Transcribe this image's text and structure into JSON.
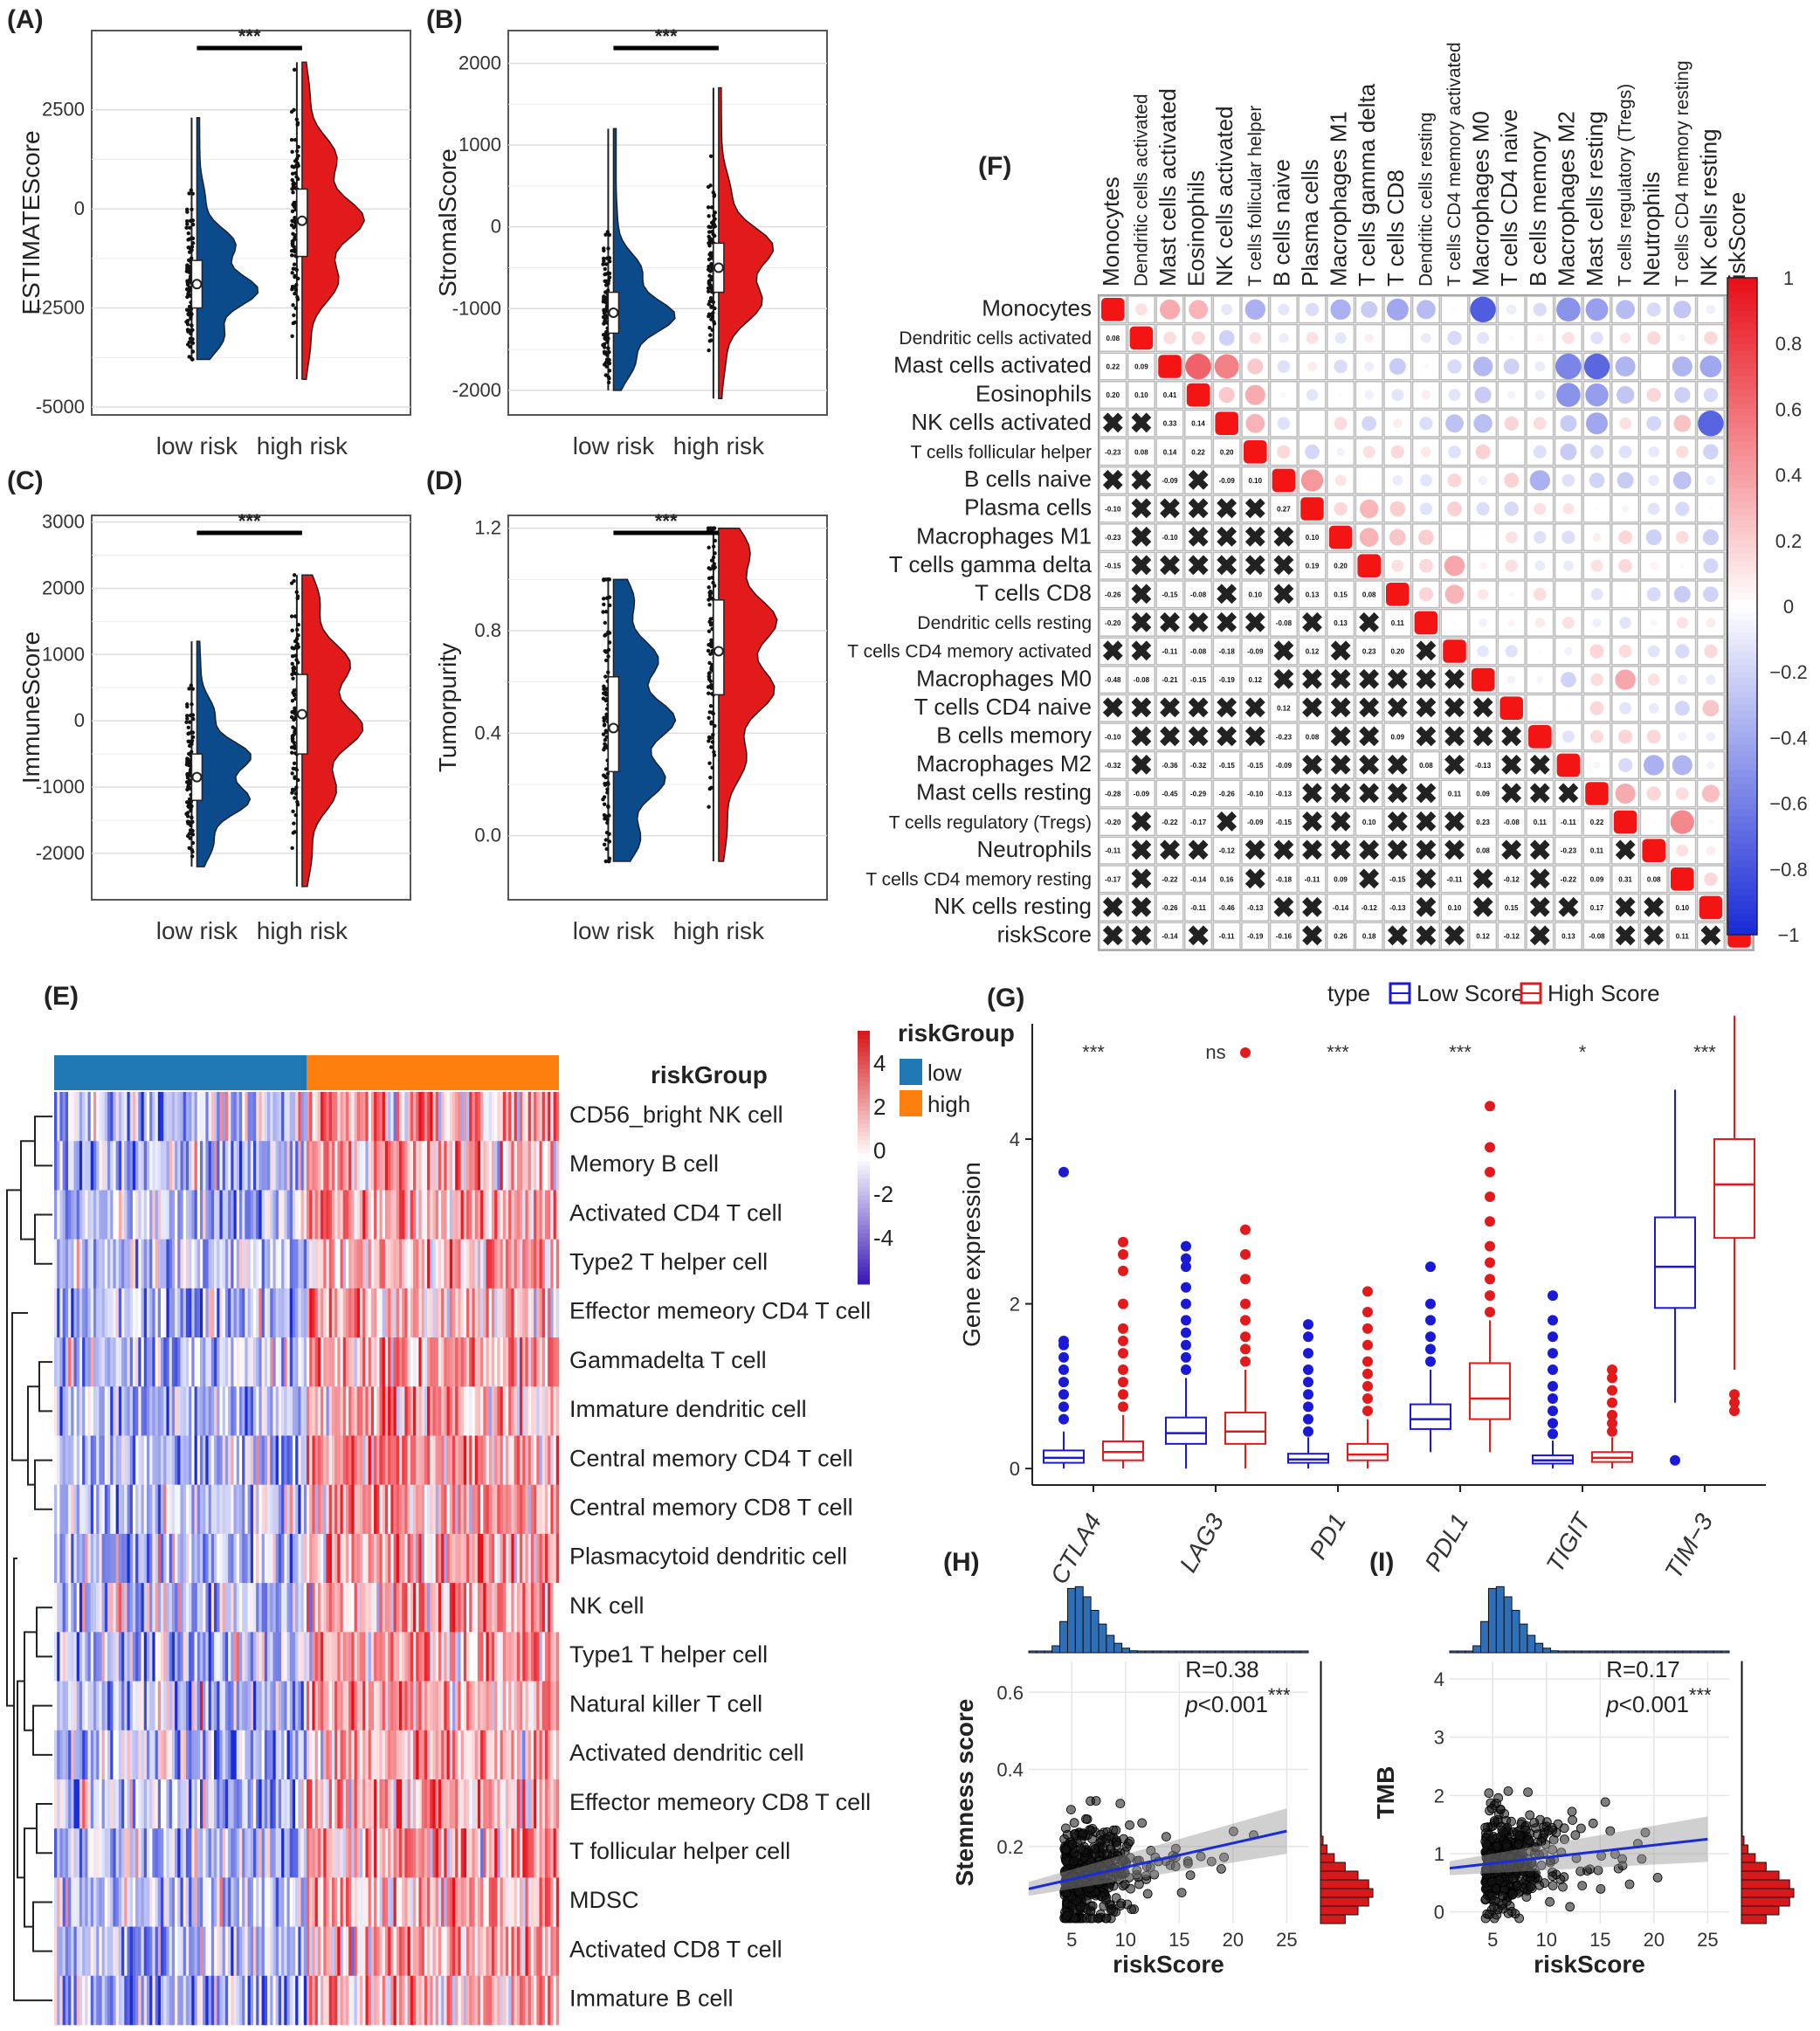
{
  "panels": {
    "A": {
      "letter": "(A)",
      "chart_data": {
        "type": "violin",
        "ylabel": "ESTIMATEScore",
        "categories": [
          "low risk",
          "high risk"
        ],
        "yticks": [
          2500,
          0,
          -2500,
          -5000
        ],
        "ylim": [
          -5200,
          4500
        ],
        "significance": "***",
        "groups": [
          {
            "name": "low risk",
            "median": -1900,
            "q1": -2500,
            "q3": -1300,
            "min": -3800,
            "max": 2300,
            "color": "#0b4a8b"
          },
          {
            "name": "high risk",
            "median": -300,
            "q1": -1200,
            "q3": 500,
            "min": -4300,
            "max": 3700,
            "color": "#e31a1c"
          }
        ]
      }
    },
    "B": {
      "letter": "(B)",
      "chart_data": {
        "type": "violin",
        "ylabel": "StromalScore",
        "categories": [
          "low risk",
          "high risk"
        ],
        "yticks": [
          2000,
          1000,
          0,
          -1000,
          -2000
        ],
        "ylim": [
          -2300,
          2400
        ],
        "significance": "***",
        "groups": [
          {
            "name": "low risk",
            "median": -1050,
            "q1": -1300,
            "q3": -800,
            "min": -2000,
            "max": 1200,
            "color": "#0b4a8b"
          },
          {
            "name": "high risk",
            "median": -500,
            "q1": -800,
            "q3": -200,
            "min": -2100,
            "max": 1700,
            "color": "#e31a1c"
          }
        ]
      }
    },
    "C": {
      "letter": "(C)",
      "chart_data": {
        "type": "violin",
        "ylabel": "ImmuneScore",
        "categories": [
          "low risk",
          "high risk"
        ],
        "yticks": [
          3000,
          2000,
          1000,
          0,
          -1000,
          -2000
        ],
        "ylim": [
          -2700,
          3100
        ],
        "significance": "***",
        "groups": [
          {
            "name": "low risk",
            "median": -850,
            "q1": -1200,
            "q3": -500,
            "min": -2200,
            "max": 1200,
            "color": "#0b4a8b"
          },
          {
            "name": "high risk",
            "median": 100,
            "q1": -500,
            "q3": 700,
            "min": -2500,
            "max": 2200,
            "color": "#e31a1c"
          }
        ]
      }
    },
    "D": {
      "letter": "(D)",
      "chart_data": {
        "type": "violin",
        "ylabel": "Tumorpurity",
        "categories": [
          "low risk",
          "high risk"
        ],
        "yticks": [
          "1.2",
          "0.8",
          "0.4",
          "0.0"
        ],
        "ylim": [
          -0.25,
          1.25
        ],
        "significance": "***",
        "groups": [
          {
            "name": "low risk",
            "median": 0.42,
            "q1": 0.25,
            "q3": 0.62,
            "min": -0.1,
            "max": 1.0,
            "color": "#0b4a8b"
          },
          {
            "name": "high risk",
            "median": 0.72,
            "q1": 0.55,
            "q3": 0.92,
            "min": -0.1,
            "max": 1.2,
            "color": "#e31a1c"
          }
        ]
      }
    },
    "E": {
      "letter": "(E)",
      "legend_title": "riskGroup",
      "legend_items": [
        {
          "label": "low",
          "color": "#1f77b4"
        },
        {
          "label": "high",
          "color": "#ff7f0e"
        }
      ],
      "scale_ticks": [
        "4",
        "2",
        "0",
        "-2",
        "-4"
      ],
      "chart_data": {
        "type": "heatmap",
        "rows": [
          "CD56_bright NK cell",
          "Memory B cell",
          "Activated CD4  T cell",
          "Type2 T helper cell",
          "Effector memeory CD4 T cell",
          "Gammadelta T cell",
          "Immature dendritic cell",
          "Central memory CD4 T cell",
          "Central memory CD8 T cell",
          "Plasmacytoid dendritic cell",
          "NK cell",
          "Type1 T helper cell",
          "Natural killer T cell",
          "Activated dendritic cell",
          "Effector memeory CD8 T cell",
          "T follicular helper cell",
          "MDSC",
          "Activated CD8 T cell",
          "Immature B cell"
        ],
        "groups": [
          "low",
          "high"
        ],
        "low_fraction": 0.5,
        "color_range": [
          -4,
          4
        ]
      }
    },
    "F": {
      "letter": "(F)",
      "colorbar_ticks": [
        "1",
        "0.8",
        "0.6",
        "0.4",
        "0.2",
        "0",
        "−0.2",
        "−0.4",
        "−0.6",
        "−0.8",
        "−1"
      ],
      "chart_data": {
        "type": "correlation-matrix",
        "labels": [
          "Monocytes",
          "Dendritic cells activated",
          "Mast cells activated",
          "Eosinophils",
          "NK cells activated",
          "T cells follicular helper",
          "B cells naive",
          "Plasma cells",
          "Macrophages M1",
          "T cells gamma delta",
          "T cells CD8",
          "Dendritic cells resting",
          "T cells CD4 memory activated",
          "Macrophages M0",
          "T cells CD4 naive",
          "B cells memory",
          "Macrophages M2",
          "Mast cells resting",
          "T cells regulatory (Tregs)",
          "Neutrophils",
          "T cells CD4 memory resting",
          "NK cells resting",
          "riskScore"
        ],
        "label_colors": [
          "#111111",
          "#111111",
          "#1a1ad6",
          "#111111",
          "#1a1ad6",
          "#1a1ad6",
          "#1a1ad6",
          "#111111",
          "#e31a1c",
          "#e31a1c",
          "#111111",
          "#111111",
          "#111111",
          "#e31a1c",
          "#1a1ad6",
          "#111111",
          "#e31a1c",
          "#1a1ad6",
          "#111111",
          "#111111",
          "#e31a1c",
          "#111111",
          "#e010c8"
        ],
        "lower": [
          [],
          [
            "0.08"
          ],
          [
            "0.22",
            "0.09"
          ],
          [
            "0.20",
            "0.10",
            "0.41"
          ],
          [
            "X",
            "X",
            "0.33",
            "0.14"
          ],
          [
            "-0.23",
            "0.08",
            "0.14",
            "0.22",
            "0.20"
          ],
          [
            "X",
            "X",
            "-0.09",
            "X",
            "-0.09",
            "0.10"
          ],
          [
            "-0.10",
            "X",
            "X",
            "X",
            "X",
            "X",
            "0.27"
          ],
          [
            "-0.23",
            "X",
            "-0.10",
            "X",
            "X",
            "X",
            "X",
            "0.10"
          ],
          [
            "-0.15",
            "X",
            "X",
            "X",
            "X",
            "X",
            "X",
            "0.19",
            "0.20"
          ],
          [
            "-0.26",
            "X",
            "-0.15",
            "-0.08",
            "X",
            "0.10",
            "X",
            "0.13",
            "0.15",
            "0.08"
          ],
          [
            "-0.20",
            "X",
            "X",
            "X",
            "X",
            "X",
            "-0.08",
            "X",
            "0.13",
            "X",
            "0.11"
          ],
          [
            "X",
            "X",
            "-0.11",
            "-0.08",
            "-0.18",
            "-0.09",
            "X",
            "0.12",
            "X",
            "0.23",
            "0.20",
            "X"
          ],
          [
            "-0.48",
            "-0.08",
            "-0.21",
            "-0.15",
            "-0.19",
            "0.12",
            "X",
            "X",
            "X",
            "X",
            "X",
            "X",
            "X"
          ],
          [
            "X",
            "X",
            "X",
            "X",
            "X",
            "X",
            "0.12",
            "X",
            "X",
            "X",
            "X",
            "X",
            "X",
            "X"
          ],
          [
            "-0.10",
            "X",
            "X",
            "X",
            "X",
            "X",
            "-0.23",
            "0.08",
            "X",
            "X",
            "0.09",
            "X",
            "X",
            "X",
            "X"
          ],
          [
            "-0.32",
            "X",
            "-0.36",
            "-0.32",
            "-0.15",
            "-0.15",
            "-0.09",
            "X",
            "X",
            "X",
            "X",
            "0.08",
            "X",
            "-0.13",
            "X",
            "X"
          ],
          [
            "-0.28",
            "-0.09",
            "-0.45",
            "-0.29",
            "-0.26",
            "-0.10",
            "-0.13",
            "X",
            "X",
            "X",
            "X",
            "X",
            "0.11",
            "0.09",
            "X",
            "X",
            "X"
          ],
          [
            "-0.20",
            "X",
            "-0.22",
            "-0.17",
            "X",
            "-0.09",
            "-0.15",
            "X",
            "X",
            "0.10",
            "X",
            "X",
            "X",
            "0.23",
            "-0.08",
            "0.11",
            "-0.11",
            "0.22"
          ],
          [
            "-0.11",
            "X",
            "X",
            "X",
            "-0.12",
            "X",
            "X",
            "X",
            "X",
            "X",
            "X",
            "X",
            "X",
            "0.08",
            "X",
            "X",
            "-0.23",
            "0.11",
            "X"
          ],
          [
            "-0.17",
            "X",
            "-0.22",
            "-0.14",
            "0.16",
            "X",
            "-0.18",
            "-0.11",
            "0.09",
            "X",
            "-0.15",
            "X",
            "-0.11",
            "X",
            "-0.12",
            "X",
            "-0.22",
            "0.09",
            "0.31",
            "0.08"
          ],
          [
            "X",
            "X",
            "-0.26",
            "-0.11",
            "-0.46",
            "-0.13",
            "X",
            "X",
            "-0.14",
            "-0.12",
            "-0.13",
            "X",
            "0.10",
            "X",
            "0.15",
            "X",
            "X",
            "0.17",
            "X",
            "X",
            "0.10"
          ],
          [
            "X",
            "X",
            "-0.14",
            "X",
            "-0.11",
            "-0.19",
            "-0.16",
            "X",
            "0.26",
            "0.18",
            "X",
            "X",
            "X",
            "0.12",
            "-0.12",
            "X",
            "0.13",
            "-0.08",
            "X",
            "X",
            "0.11",
            "X"
          ]
        ],
        "color_range": [
          -1,
          1
        ]
      }
    },
    "G": {
      "letter": "(G)",
      "legend_title": "type",
      "legend_items": [
        {
          "label": "Low Score",
          "color": "#1a1ad6"
        },
        {
          "label": "High Score",
          "color": "#e31a1c"
        }
      ],
      "chart_data": {
        "type": "box",
        "ylabel": "Gene expression",
        "yticks": [
          0,
          2,
          4
        ],
        "ylim": [
          -0.2,
          5.4
        ],
        "categories": [
          "CTLA4",
          "LAG3",
          "PD1",
          "PDL1",
          "TIGIT",
          "TIM−3"
        ],
        "significance": [
          "***",
          "ns",
          "***",
          "***",
          "*",
          "***"
        ],
        "series": [
          {
            "name": "Low Score",
            "color": "#1a1ad6",
            "boxes": [
              {
                "q1": 0.07,
                "median": 0.13,
                "q3": 0.22,
                "wlo": 0.0,
                "whi": 0.45,
                "outliers": [
                  0.6,
                  0.75,
                  0.9,
                  1.05,
                  1.2,
                  1.35,
                  1.5,
                  1.55,
                  3.6
                ]
              },
              {
                "q1": 0.3,
                "median": 0.43,
                "q3": 0.62,
                "wlo": 0.0,
                "whi": 1.1,
                "outliers": [
                  1.2,
                  1.35,
                  1.5,
                  1.65,
                  1.8,
                  2.0,
                  2.2,
                  2.45,
                  2.55,
                  2.7
                ]
              },
              {
                "q1": 0.07,
                "median": 0.11,
                "q3": 0.18,
                "wlo": 0.0,
                "whi": 0.38,
                "outliers": [
                  0.45,
                  0.6,
                  0.75,
                  0.9,
                  1.05,
                  1.2,
                  1.4,
                  1.6,
                  1.75
                ]
              },
              {
                "q1": 0.48,
                "median": 0.6,
                "q3": 0.78,
                "wlo": 0.2,
                "whi": 1.2,
                "outliers": [
                  1.3,
                  1.45,
                  1.6,
                  1.8,
                  2.0,
                  2.45
                ]
              },
              {
                "q1": 0.06,
                "median": 0.1,
                "q3": 0.16,
                "wlo": 0.0,
                "whi": 0.34,
                "outliers": [
                  0.42,
                  0.55,
                  0.7,
                  0.85,
                  1.0,
                  1.2,
                  1.4,
                  1.6,
                  1.8,
                  2.1
                ]
              },
              {
                "q1": 1.95,
                "median": 2.45,
                "q3": 3.05,
                "wlo": 0.8,
                "whi": 4.6,
                "outliers": [
                  0.1
                ]
              }
            ]
          },
          {
            "name": "High Score",
            "color": "#e31a1c",
            "boxes": [
              {
                "q1": 0.1,
                "median": 0.2,
                "q3": 0.33,
                "wlo": 0.0,
                "whi": 0.65,
                "outliers": [
                  0.75,
                  0.9,
                  1.05,
                  1.2,
                  1.4,
                  1.55,
                  1.7,
                  2.0,
                  2.4,
                  2.6,
                  2.75
                ]
              },
              {
                "q1": 0.3,
                "median": 0.45,
                "q3": 0.68,
                "wlo": 0.0,
                "whi": 1.2,
                "outliers": [
                  1.3,
                  1.45,
                  1.6,
                  1.8,
                  2.0,
                  2.3,
                  2.6,
                  2.9,
                  5.05
                ]
              },
              {
                "q1": 0.1,
                "median": 0.17,
                "q3": 0.3,
                "wlo": 0.0,
                "whi": 0.6,
                "outliers": [
                  0.7,
                  0.85,
                  1.0,
                  1.15,
                  1.3,
                  1.5,
                  1.7,
                  1.9,
                  2.15
                ]
              },
              {
                "q1": 0.6,
                "median": 0.85,
                "q3": 1.28,
                "wlo": 0.2,
                "whi": 1.8,
                "outliers": [
                  1.9,
                  2.1,
                  2.3,
                  2.5,
                  2.7,
                  3.0,
                  3.3,
                  3.6,
                  3.9,
                  4.4
                ]
              },
              {
                "q1": 0.08,
                "median": 0.13,
                "q3": 0.2,
                "wlo": 0.0,
                "whi": 0.38,
                "outliers": [
                  0.45,
                  0.55,
                  0.65,
                  0.8,
                  0.95,
                  1.1,
                  1.2
                ]
              },
              {
                "q1": 2.8,
                "median": 3.45,
                "q3": 4.0,
                "wlo": 1.2,
                "whi": 5.5,
                "outliers": [
                  0.7,
                  0.8,
                  0.9
                ]
              }
            ]
          }
        ]
      }
    },
    "H": {
      "letter": "(H)",
      "r_text": "R=0.38",
      "p_prefix": "p",
      "p_text": "<0.001",
      "p_stars": "***",
      "chart_data": {
        "type": "scatter",
        "xlabel": "riskScore",
        "ylabel": "Stemness score",
        "xticks": [
          5,
          10,
          15,
          20,
          25
        ],
        "yticks": [
          0.2,
          0.4,
          0.6
        ],
        "xlim": [
          1,
          27
        ],
        "ylim": [
          0.0,
          0.68
        ],
        "fit": {
          "x0": 1,
          "y0": 0.09,
          "x1": 25,
          "y1": 0.24
        },
        "points_seed": 7,
        "n_points": 480,
        "cluster": {
          "xmean": 6.5,
          "ymean": 0.13
        }
      }
    },
    "I": {
      "letter": "(I)",
      "r_text": "R=0.17",
      "p_prefix": "p",
      "p_text": "<0.001",
      "p_stars": "***",
      "chart_data": {
        "type": "scatter",
        "xlabel": "riskScore",
        "ylabel": "TMB",
        "xticks": [
          5,
          10,
          15,
          20,
          25
        ],
        "yticks": [
          0,
          1,
          2,
          3,
          4
        ],
        "xlim": [
          1,
          27
        ],
        "ylim": [
          -0.2,
          4.3
        ],
        "fit": {
          "x0": 1,
          "y0": 0.75,
          "x1": 25,
          "y1": 1.25
        },
        "points_seed": 11,
        "n_points": 480,
        "cluster": {
          "xmean": 6.5,
          "ymean": 0.95
        }
      }
    }
  }
}
